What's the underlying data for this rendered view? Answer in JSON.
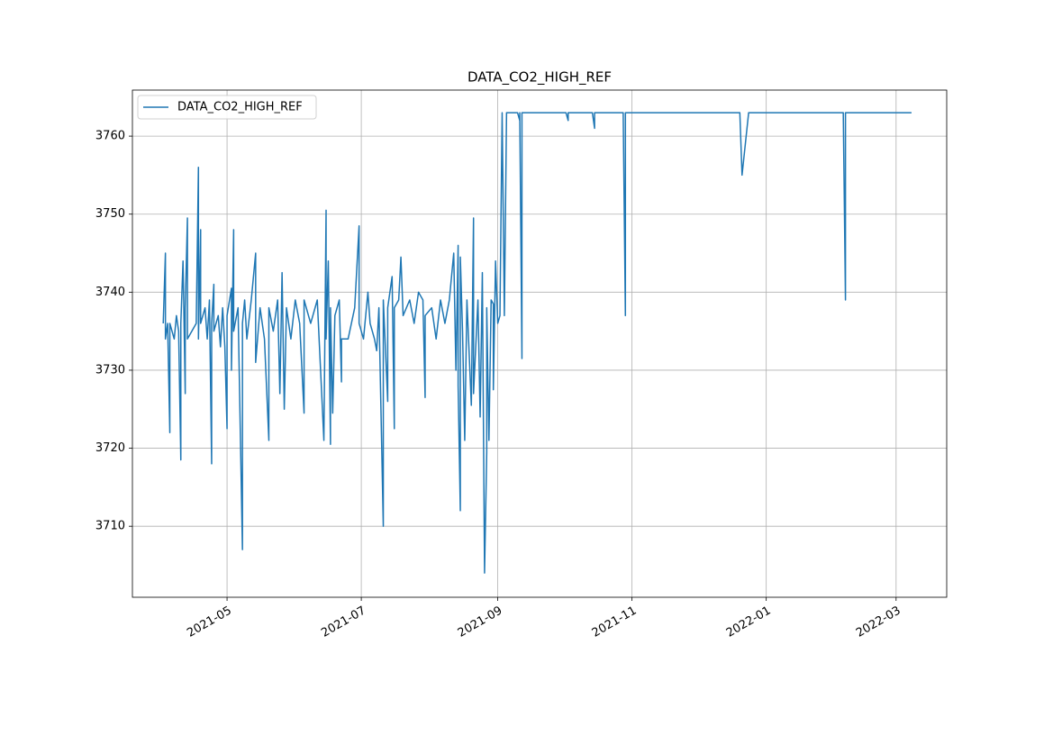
{
  "chart_data": {
    "type": "line",
    "title": "DATA_CO2_HIGH_REF",
    "x": [
      "2021-04-02",
      "2021-04-03",
      "2021-04-03",
      "2021-04-04",
      "2021-04-05",
      "2021-04-05",
      "2021-04-07",
      "2021-04-08",
      "2021-04-09",
      "2021-04-10",
      "2021-04-10",
      "2021-04-11",
      "2021-04-12",
      "2021-04-12",
      "2021-04-13",
      "2021-04-13",
      "2021-04-15",
      "2021-04-17",
      "2021-04-18",
      "2021-04-18",
      "2021-04-19",
      "2021-04-19",
      "2021-04-21",
      "2021-04-22",
      "2021-04-23",
      "2021-04-24",
      "2021-04-24",
      "2021-04-25",
      "2021-04-25",
      "2021-04-27",
      "2021-04-28",
      "2021-04-29",
      "2021-04-30",
      "2021-05-01",
      "2021-05-01",
      "2021-05-03",
      "2021-05-03",
      "2021-05-04",
      "2021-05-04",
      "2021-05-06",
      "2021-05-08",
      "2021-05-08",
      "2021-05-09",
      "2021-05-10",
      "2021-05-12",
      "2021-05-14",
      "2021-05-14",
      "2021-05-16",
      "2021-05-18",
      "2021-05-20",
      "2021-05-20",
      "2021-05-22",
      "2021-05-24",
      "2021-05-25",
      "2021-05-26",
      "2021-05-27",
      "2021-05-28",
      "2021-05-30",
      "2021-06-01",
      "2021-06-03",
      "2021-06-05",
      "2021-06-05",
      "2021-06-08",
      "2021-06-11",
      "2021-06-14",
      "2021-06-15",
      "2021-06-15",
      "2021-06-16",
      "2021-06-17",
      "2021-06-17",
      "2021-06-18",
      "2021-06-19",
      "2021-06-21",
      "2021-06-22",
      "2021-06-22",
      "2021-06-25",
      "2021-06-28",
      "2021-06-30",
      "2021-06-30",
      "2021-07-02",
      "2021-07-04",
      "2021-07-05",
      "2021-07-07",
      "2021-07-08",
      "2021-07-09",
      "2021-07-11",
      "2021-07-11",
      "2021-07-13",
      "2021-07-13",
      "2021-07-15",
      "2021-07-16",
      "2021-07-16",
      "2021-07-18",
      "2021-07-19",
      "2021-07-20",
      "2021-07-23",
      "2021-07-25",
      "2021-07-27",
      "2021-07-29",
      "2021-07-30",
      "2021-07-30",
      "2021-08-02",
      "2021-08-04",
      "2021-08-06",
      "2021-08-08",
      "2021-08-10",
      "2021-08-12",
      "2021-08-13",
      "2021-08-14",
      "2021-08-14",
      "2021-08-15",
      "2021-08-15",
      "2021-08-16",
      "2021-08-17",
      "2021-08-18",
      "2021-08-20",
      "2021-08-21",
      "2021-08-21",
      "2021-08-23",
      "2021-08-24",
      "2021-08-25",
      "2021-08-26",
      "2021-08-27",
      "2021-08-27",
      "2021-08-28",
      "2021-08-29",
      "2021-08-30",
      "2021-08-30",
      "2021-08-31",
      "2021-09-01",
      "2021-09-02",
      "2021-09-03",
      "2021-09-04",
      "2021-09-05",
      "2021-09-10",
      "2021-09-11",
      "2021-09-11",
      "2021-09-12",
      "2021-09-12",
      "2021-10-02",
      "2021-10-03",
      "2021-10-03",
      "2021-10-14",
      "2021-10-15",
      "2021-10-15",
      "2021-10-28",
      "2021-10-29",
      "2021-10-29",
      "2021-12-20",
      "2021-12-21",
      "2021-12-24",
      "2022-02-05",
      "2022-02-06",
      "2022-02-06",
      "2022-03-08"
    ],
    "series": [
      {
        "name": "DATA_CO2_HIGH_REF",
        "color": "#1f77b4",
        "values": [
          3736,
          3745,
          3734,
          3736,
          3722,
          3736,
          3734,
          3737,
          3735,
          3718.5,
          3736,
          3744,
          3727,
          3738,
          3749.5,
          3734,
          3735,
          3736,
          3756,
          3734,
          3748,
          3736,
          3738,
          3734,
          3739,
          3718,
          3736,
          3741,
          3735,
          3737,
          3733,
          3738,
          3733,
          3722.5,
          3737,
          3740.5,
          3730,
          3748,
          3735,
          3738,
          3707,
          3736,
          3739,
          3734,
          3739,
          3745,
          3731,
          3738,
          3734,
          3721,
          3738,
          3735,
          3739,
          3727,
          3742.5,
          3725,
          3738,
          3734,
          3739,
          3736,
          3724.5,
          3739,
          3736,
          3739,
          3721,
          3750.5,
          3734,
          3744,
          3720.5,
          3738,
          3724.5,
          3737,
          3739,
          3728.5,
          3734,
          3734,
          3738,
          3748.5,
          3736,
          3734,
          3740,
          3736,
          3734,
          3732.5,
          3738,
          3710,
          3739,
          3726,
          3738,
          3742,
          3722.5,
          3738,
          3739,
          3744.5,
          3737,
          3739,
          3736,
          3740,
          3739,
          3726.5,
          3737,
          3738,
          3734,
          3739,
          3736,
          3739,
          3745,
          3730,
          3746,
          3728,
          3712,
          3744.5,
          3735,
          3721,
          3739,
          3725.5,
          3749.5,
          3727,
          3739,
          3724,
          3742.5,
          3704,
          3719.5,
          3738,
          3721,
          3739,
          3738.5,
          3727.5,
          3744,
          3736,
          3737,
          3763,
          3737,
          3763,
          3763,
          3762,
          3763,
          3731.5,
          3763,
          3763,
          3762,
          3763,
          3763,
          3761,
          3763,
          3763,
          3737,
          3763,
          3763,
          3755,
          3763,
          3763,
          3739,
          3763,
          3763
        ]
      }
    ],
    "xlim": [
      "2021-03-19",
      "2022-03-24"
    ],
    "xticks": [
      {
        "value": "2021-05-01",
        "label": "2021-05"
      },
      {
        "value": "2021-07-01",
        "label": "2021-07"
      },
      {
        "value": "2021-09-01",
        "label": "2021-09"
      },
      {
        "value": "2021-11-01",
        "label": "2021-11"
      },
      {
        "value": "2022-01-01",
        "label": "2022-01"
      },
      {
        "value": "2022-03-01",
        "label": "2022-03"
      }
    ],
    "ylim": [
      3700.9,
      3765.9
    ],
    "yticks": [
      3710,
      3720,
      3730,
      3740,
      3750,
      3760
    ],
    "grid": true,
    "legend": "upper-left"
  }
}
